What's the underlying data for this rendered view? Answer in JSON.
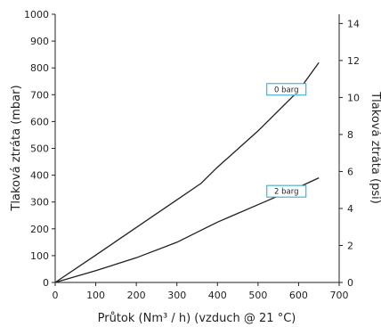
{
  "chart_data": {
    "type": "line",
    "title": "",
    "xlabel": "Průtok (Nm³ / h) (vzduch @ 21 °C)",
    "ylabel": "Tlaková ztráta (mbar)",
    "y2label": "Tlaková ztráta (psi)",
    "xlim": [
      0,
      700
    ],
    "ylim": [
      0,
      1000
    ],
    "y2lim": [
      0,
      14.5
    ],
    "x_ticks": [
      0,
      100,
      200,
      300,
      400,
      500,
      600,
      700
    ],
    "y_ticks": [
      0,
      100,
      200,
      300,
      400,
      500,
      600,
      700,
      800,
      900,
      1000
    ],
    "y2_ticks": [
      0,
      2,
      4,
      6,
      8,
      10,
      12,
      14
    ],
    "grid": false,
    "line_color": "#231f20",
    "callout_color": "#29a3c9",
    "series": [
      {
        "name": "0 barg",
        "x": [
          0,
          100,
          200,
          300,
          360,
          400,
          500,
          600,
          650
        ],
        "y": [
          0,
          102,
          205,
          308,
          370,
          430,
          565,
          715,
          820
        ],
        "label_at": [
          570,
          720
        ]
      },
      {
        "name": "2 barg",
        "x": [
          0,
          100,
          200,
          300,
          360,
          400,
          500,
          600,
          650
        ],
        "y": [
          0,
          44,
          92,
          150,
          195,
          225,
          290,
          355,
          390
        ],
        "label_at": [
          570,
          340
        ]
      }
    ]
  }
}
